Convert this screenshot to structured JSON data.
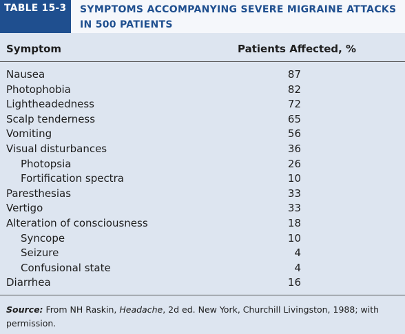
{
  "header": {
    "tag": "TABLE 15-3",
    "title_line1": "SYMPTOMS ACCOMPANYING SEVERE MIGRAINE ATTACKS",
    "title_line2": "IN 500 PATIENTS"
  },
  "columns": {
    "symptom": "Symptom",
    "patients": "Patients Affected, %"
  },
  "rows": [
    {
      "label": "Nausea",
      "value": "87",
      "indent": false
    },
    {
      "label": "Photophobia",
      "value": "82",
      "indent": false
    },
    {
      "label": "Lightheadedness",
      "value": "72",
      "indent": false
    },
    {
      "label": "Scalp tenderness",
      "value": "65",
      "indent": false
    },
    {
      "label": "Vomiting",
      "value": "56",
      "indent": false
    },
    {
      "label": "Visual disturbances",
      "value": "36",
      "indent": false
    },
    {
      "label": "Photopsia",
      "value": "26",
      "indent": true
    },
    {
      "label": "Fortification spectra",
      "value": "10",
      "indent": true
    },
    {
      "label": "Paresthesias",
      "value": "33",
      "indent": false
    },
    {
      "label": "Vertigo",
      "value": "33",
      "indent": false
    },
    {
      "label": "Alteration of consciousness",
      "value": "18",
      "indent": false
    },
    {
      "label": "Syncope",
      "value": "10",
      "indent": true
    },
    {
      "label": "Seizure",
      "value": "4",
      "indent": true
    },
    {
      "label": "Confusional state",
      "value": "4",
      "indent": true
    },
    {
      "label": "Diarrhea",
      "value": "16",
      "indent": false
    }
  ],
  "source": {
    "label": "Source:",
    "text_before": "From NH Raskin,",
    "book": "Headache",
    "text_after": ", 2d ed. New York, Churchill Livingston, 1988; with permission."
  },
  "colors": {
    "accent": "#1f4f8f",
    "background": "#dde5f0",
    "header_background": "#f5f7fb"
  }
}
